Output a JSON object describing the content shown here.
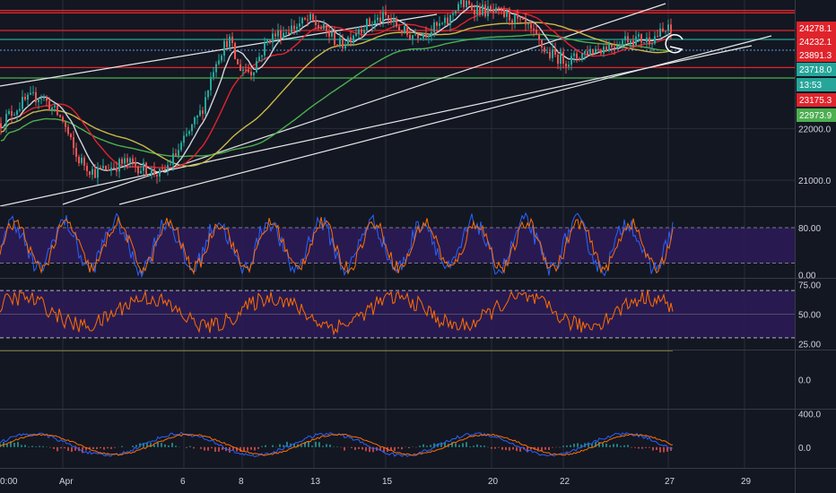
{
  "chart_data": {
    "type": "line",
    "time_axis": {
      "labels": [
        "0:00",
        "Apr",
        "6",
        "8",
        "13",
        "15",
        "20",
        "22",
        "27",
        "29"
      ]
    },
    "price_panel": {
      "ticks": [
        "22000.0",
        "21000.0"
      ],
      "price_tags": [
        {
          "label": "24278.1",
          "color": "#e0242c"
        },
        {
          "label": "24232.1",
          "color": "#e0242c"
        },
        {
          "label": "23891.3",
          "color": "#e0242c"
        },
        {
          "label": "23718.0",
          "color": "#26a69a"
        },
        {
          "label": "13:53",
          "color": "#26a69a"
        },
        {
          "label": "23175.3",
          "color": "#e0242c"
        },
        {
          "label": "22973.9",
          "color": "#4caf50"
        }
      ],
      "horizontal_levels": [
        {
          "value": 24278.1,
          "color": "#e0242c"
        },
        {
          "value": 24232.1,
          "color": "#e0242c"
        },
        {
          "value": 23891.3,
          "color": "#e0242c"
        },
        {
          "value": 23718.0,
          "color": "#26a69a"
        },
        {
          "value": 23175.3,
          "color": "#e0242c"
        },
        {
          "value": 22973.9,
          "color": "#4caf50"
        }
      ],
      "ylim": [
        20500,
        24480
      ]
    },
    "stoch_rsi_panel": {
      "ticks": [
        "80.00",
        "0.00"
      ],
      "band": [
        20,
        80
      ],
      "ylim": [
        -5,
        115
      ],
      "series_colors": [
        "#2962ff",
        "#ff6d00"
      ]
    },
    "rsi_panel": {
      "ticks": [
        "75.00",
        "50.00",
        "25.00"
      ],
      "band": [
        30,
        70
      ],
      "ylim": [
        20,
        80
      ],
      "line_color": "#ff6d00"
    },
    "momentum_panel": {
      "ticks": [
        "0.0"
      ],
      "line_color": "#c9c93a"
    },
    "macd_panel": {
      "ticks": [
        "400.0",
        "0.0"
      ],
      "ylim": [
        -250,
        450
      ],
      "series_colors": [
        "#2962ff",
        "#ff6d00"
      ]
    },
    "colors": {
      "background": "#131722",
      "grid": "#2a2e39",
      "up": "#26a69a",
      "down": "#ef5350",
      "ma_fast": "#d1d4dc",
      "ma_mid": "#e0242c",
      "ma_slow": "#c9b84a",
      "ma_long": "#4caf50",
      "band_fill": "#2b1b55"
    }
  }
}
